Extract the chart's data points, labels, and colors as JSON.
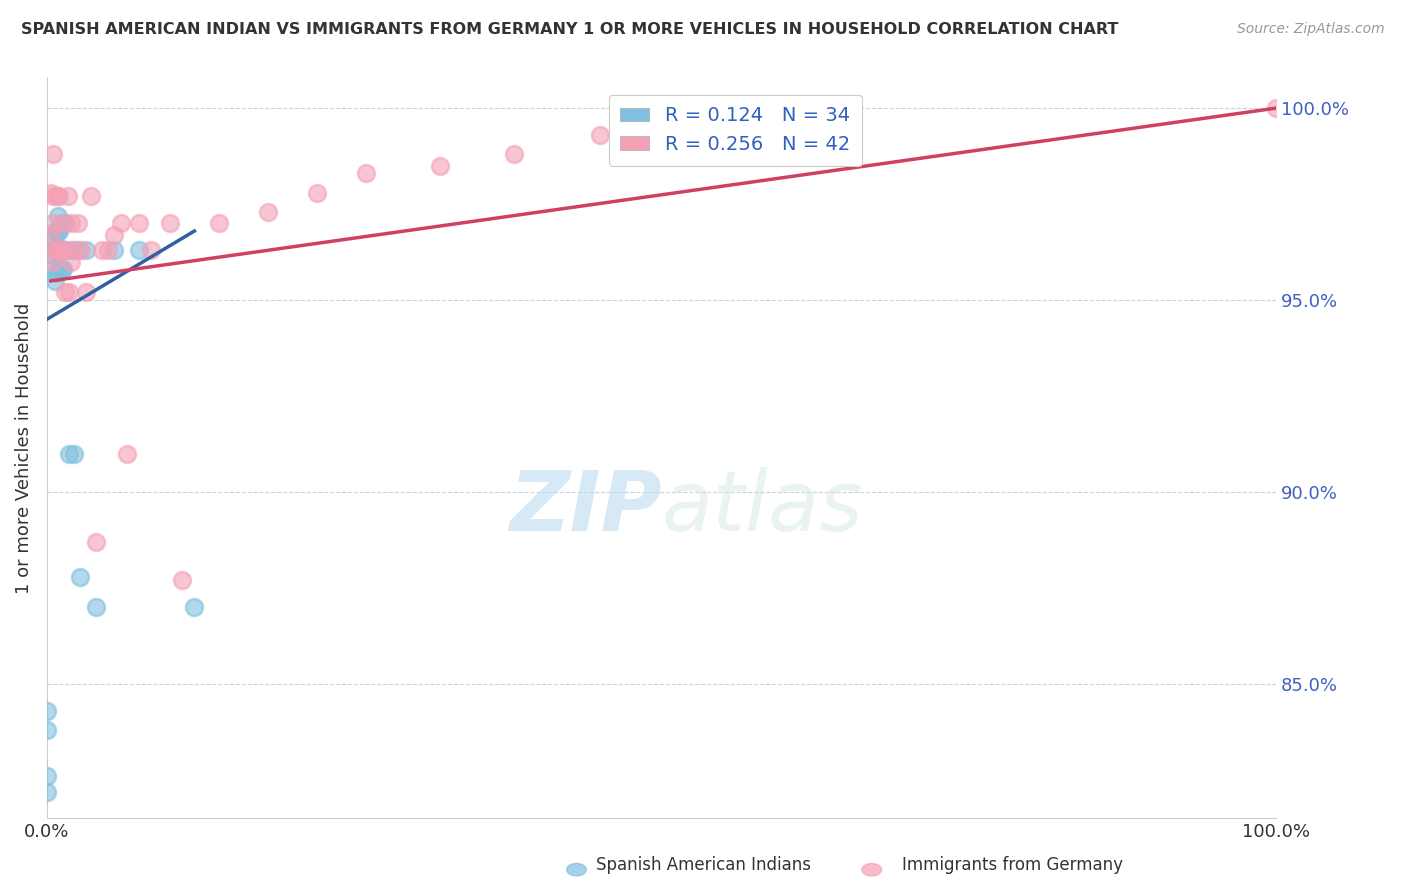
{
  "title": "SPANISH AMERICAN INDIAN VS IMMIGRANTS FROM GERMANY 1 OR MORE VEHICLES IN HOUSEHOLD CORRELATION CHART",
  "source": "Source: ZipAtlas.com",
  "ylabel": "1 or more Vehicles in Household",
  "xlabel": "",
  "xlim": [
    0.0,
    1.0
  ],
  "ylim": [
    0.815,
    1.008
  ],
  "yticks": [
    0.85,
    0.9,
    0.95,
    1.0
  ],
  "ytick_labels": [
    "85.0%",
    "90.0%",
    "95.0%",
    "100.0%"
  ],
  "xticks": [
    0.0,
    0.25,
    0.5,
    0.75,
    1.0
  ],
  "xtick_labels": [
    "0.0%",
    "",
    "",
    "",
    "100.0%"
  ],
  "legend_labels": [
    "Spanish American Indians",
    "Immigrants from Germany"
  ],
  "R_blue": 0.124,
  "N_blue": 34,
  "R_pink": 0.256,
  "N_pink": 42,
  "color_blue": "#7fbfdf",
  "color_pink": "#f4a0b5",
  "color_trend_blue": "#3060a0",
  "color_trend_pink": "#d04060",
  "watermark_zip": "ZIP",
  "watermark_atlas": "atlas",
  "blue_x": [
    0.0,
    0.0,
    0.0,
    0.0,
    0.003,
    0.003,
    0.005,
    0.005,
    0.007,
    0.007,
    0.007,
    0.008,
    0.008,
    0.009,
    0.009,
    0.01,
    0.01,
    0.01,
    0.012,
    0.012,
    0.013,
    0.013,
    0.015,
    0.015,
    0.018,
    0.02,
    0.022,
    0.025,
    0.027,
    0.032,
    0.04,
    0.055,
    0.075,
    0.12
  ],
  "blue_y": [
    0.826,
    0.838,
    0.843,
    0.822,
    0.967,
    0.962,
    0.958,
    0.963,
    0.955,
    0.963,
    0.968,
    0.957,
    0.964,
    0.968,
    0.972,
    0.958,
    0.963,
    0.968,
    0.958,
    0.97,
    0.963,
    0.958,
    0.963,
    0.97,
    0.91,
    0.963,
    0.91,
    0.963,
    0.878,
    0.963,
    0.87,
    0.963,
    0.963,
    0.87
  ],
  "pink_x": [
    0.003,
    0.003,
    0.005,
    0.005,
    0.005,
    0.005,
    0.007,
    0.008,
    0.008,
    0.01,
    0.01,
    0.012,
    0.013,
    0.015,
    0.015,
    0.017,
    0.018,
    0.02,
    0.02,
    0.022,
    0.025,
    0.028,
    0.032,
    0.036,
    0.04,
    0.045,
    0.05,
    0.055,
    0.06,
    0.065,
    0.075,
    0.085,
    0.1,
    0.11,
    0.14,
    0.18,
    0.22,
    0.26,
    0.32,
    0.38,
    0.45,
    1.0
  ],
  "pink_y": [
    0.967,
    0.978,
    0.96,
    0.97,
    0.977,
    0.988,
    0.963,
    0.963,
    0.977,
    0.963,
    0.977,
    0.963,
    0.97,
    0.952,
    0.963,
    0.977,
    0.952,
    0.96,
    0.97,
    0.963,
    0.97,
    0.963,
    0.952,
    0.977,
    0.887,
    0.963,
    0.963,
    0.967,
    0.97,
    0.91,
    0.97,
    0.963,
    0.97,
    0.877,
    0.97,
    0.973,
    0.978,
    0.983,
    0.985,
    0.988,
    0.993,
    1.0
  ],
  "blue_trend_x": [
    0.0,
    0.12
  ],
  "pink_trend_x": [
    0.003,
    1.0
  ],
  "blue_trend_start_y": 0.945,
  "blue_trend_end_y": 0.968,
  "pink_trend_start_y": 0.955,
  "pink_trend_end_y": 1.0
}
